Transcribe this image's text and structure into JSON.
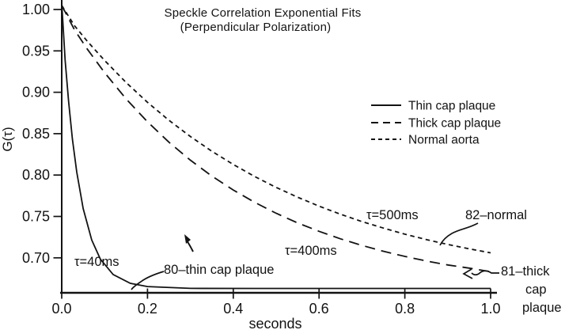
{
  "figure": {
    "background_color": "#ffffff",
    "ink_color": "#131313"
  },
  "chart_data": {
    "type": "line",
    "title": "Speckle Correlation Exponential Fits",
    "subtitle": "(Perpendicular Polarization)",
    "xlabel": "seconds",
    "ylabel": "G(τ)",
    "xlim": [
      0,
      1.0
    ],
    "ylim": [
      0.657,
      1.01
    ],
    "grid": false,
    "legend_position": "right-center",
    "legend_entries": [
      "Thin cap plaque",
      "Thick cap plaque",
      "Normal aorta"
    ],
    "x_ticks": {
      "values": [
        0,
        0.2,
        0.4,
        0.6,
        0.8,
        1.0
      ],
      "labels": [
        "0.0",
        "0.2",
        "0.4",
        "0.6",
        "0.8",
        "1.0"
      ]
    },
    "y_ticks": {
      "values": [
        1.0,
        0.95,
        0.9,
        0.85,
        0.8,
        0.75,
        0.7
      ],
      "labels": [
        "1.00",
        "0.95",
        "0.90",
        "0.85",
        "0.80",
        "0.75",
        "0.70"
      ]
    },
    "series": [
      {
        "name": "Thin cap plaque",
        "line_style": "solid",
        "tau_label": "τ=40ms",
        "curve_label": "80–thin cap plaque",
        "x": [
          0,
          0.008,
          0.016,
          0.025,
          0.035,
          0.05,
          0.07,
          0.09,
          0.12,
          0.16,
          0.2,
          0.3,
          0.45,
          0.6,
          0.8,
          1.0
        ],
        "y": [
          1.008,
          0.9389,
          0.8889,
          0.8434,
          0.8035,
          0.7596,
          0.7216,
          0.6985,
          0.6798,
          0.6692,
          0.6653,
          0.6631,
          0.663,
          0.663,
          0.663,
          0.663
        ]
      },
      {
        "name": "Thick cap plaque",
        "line_style": "long-dash",
        "tau_label": "τ=400ms",
        "curve_label": "81–thick cap plaque",
        "x": [
          0,
          0.03,
          0.06,
          0.1,
          0.15,
          0.2,
          0.25,
          0.3,
          0.35,
          0.4,
          0.45,
          0.5,
          0.55,
          0.6,
          0.65,
          0.7,
          0.75,
          0.8,
          0.85,
          0.9,
          0.95,
          1.0
        ],
        "y": [
          1.005,
          0.9751,
          0.9519,
          0.9237,
          0.8921,
          0.8643,
          0.8397,
          0.818,
          0.7988,
          0.7819,
          0.767,
          0.7538,
          0.7422,
          0.732,
          0.7229,
          0.715,
          0.7079,
          0.7017,
          0.6962,
          0.6914,
          0.6876,
          0.6833
        ]
      },
      {
        "name": "Normal aorta",
        "line_style": "short-dash",
        "tau_label": "τ=500ms",
        "curve_label": "82–normal",
        "x": [
          0,
          0.03,
          0.06,
          0.1,
          0.15,
          0.2,
          0.25,
          0.3,
          0.35,
          0.4,
          0.45,
          0.5,
          0.55,
          0.6,
          0.65,
          0.7,
          0.75,
          0.8,
          0.85,
          0.9,
          0.95,
          1.0
        ],
        "y": [
          1.005,
          0.9802,
          0.9615,
          0.9384,
          0.9119,
          0.8879,
          0.8662,
          0.8466,
          0.8288,
          0.8128,
          0.7982,
          0.7851,
          0.7732,
          0.7624,
          0.7527,
          0.7438,
          0.7359,
          0.7286,
          0.7221,
          0.7162,
          0.7109,
          0.706
        ]
      }
    ],
    "annotations": [
      {
        "text": "τ=40ms"
      },
      {
        "text": "80–thin cap plaque"
      },
      {
        "text": "τ=400ms"
      },
      {
        "text": "τ=500ms"
      },
      {
        "text": "82–normal"
      },
      {
        "text": "81–thick"
      },
      {
        "text": "cap"
      },
      {
        "text": "plaque"
      }
    ]
  }
}
